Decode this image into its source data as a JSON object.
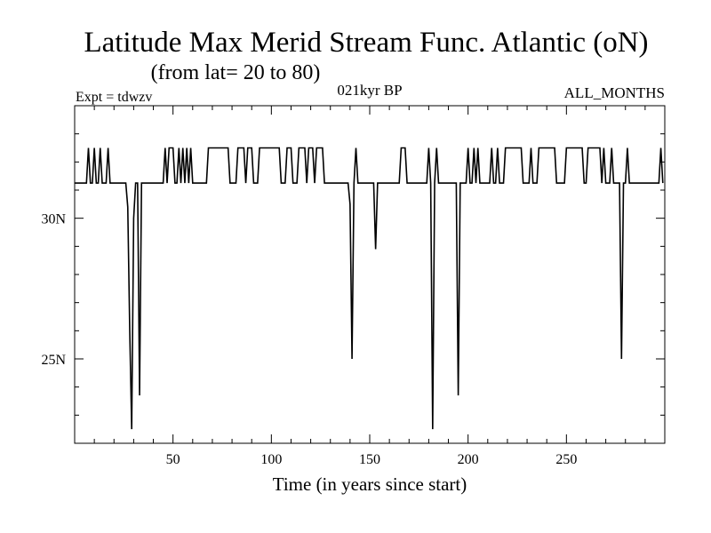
{
  "chart_data": {
    "type": "line",
    "title": "Latitude Max Merid Stream Func. Atlantic (oN)",
    "subtitle": "(from lat= 20 to 80)",
    "annotations": {
      "left": "Expt = tdwzv",
      "center": "021kyr BP",
      "right": "ALL_MONTHS"
    },
    "xlabel": "Time (in years since start)",
    "ylabel": "",
    "xlim": [
      0,
      300
    ],
    "ylim": [
      22,
      34
    ],
    "x_ticks": [
      {
        "value": 50,
        "label": "50"
      },
      {
        "value": 100,
        "label": "100"
      },
      {
        "value": 150,
        "label": "150"
      },
      {
        "value": 200,
        "label": "200"
      },
      {
        "value": 250,
        "label": "250"
      }
    ],
    "y_ticks": [
      {
        "value": 25,
        "label": "25N"
      },
      {
        "value": 30,
        "label": "30N"
      }
    ],
    "baseline": 31.25,
    "high": 32.5,
    "grid": false,
    "line_color": "#000000",
    "series": [
      {
        "points": [
          [
            0,
            31.25
          ],
          [
            6,
            31.25
          ],
          [
            7,
            32.5
          ],
          [
            8,
            31.25
          ],
          [
            9,
            31.25
          ],
          [
            10,
            32.5
          ],
          [
            11,
            31.25
          ],
          [
            12,
            31.25
          ],
          [
            13,
            32.5
          ],
          [
            14,
            31.25
          ],
          [
            16,
            31.25
          ],
          [
            17,
            32.5
          ],
          [
            18,
            31.25
          ],
          [
            26,
            31.25
          ],
          [
            27,
            30.4
          ],
          [
            28,
            26
          ],
          [
            29,
            22.5
          ],
          [
            30,
            30
          ],
          [
            31,
            31.25
          ],
          [
            32,
            31.25
          ],
          [
            33,
            23.7
          ],
          [
            34,
            31.25
          ],
          [
            45,
            31.25
          ],
          [
            46,
            32.5
          ],
          [
            47,
            31.25
          ],
          [
            48,
            32.5
          ],
          [
            50,
            32.5
          ],
          [
            51,
            31.25
          ],
          [
            52,
            31.25
          ],
          [
            53,
            32.5
          ],
          [
            54,
            31.25
          ],
          [
            55,
            32.5
          ],
          [
            56,
            31.25
          ],
          [
            57,
            32.5
          ],
          [
            58,
            31.25
          ],
          [
            59,
            32.5
          ],
          [
            60,
            31.25
          ],
          [
            67,
            31.25
          ],
          [
            68,
            32.5
          ],
          [
            78,
            32.5
          ],
          [
            79,
            31.25
          ],
          [
            82,
            31.25
          ],
          [
            83,
            32.5
          ],
          [
            86,
            32.5
          ],
          [
            87,
            31.25
          ],
          [
            88,
            32.5
          ],
          [
            90,
            32.5
          ],
          [
            91,
            31.25
          ],
          [
            93,
            31.25
          ],
          [
            94,
            32.5
          ],
          [
            104,
            32.5
          ],
          [
            105,
            31.25
          ],
          [
            107,
            31.25
          ],
          [
            108,
            32.5
          ],
          [
            110,
            32.5
          ],
          [
            111,
            31.25
          ],
          [
            113,
            31.25
          ],
          [
            114,
            32.5
          ],
          [
            117,
            32.5
          ],
          [
            118,
            31.25
          ],
          [
            119,
            32.5
          ],
          [
            121,
            32.5
          ],
          [
            122,
            31.25
          ],
          [
            123,
            32.5
          ],
          [
            126,
            32.5
          ],
          [
            127,
            31.25
          ],
          [
            139,
            31.25
          ],
          [
            140,
            30.5
          ],
          [
            141,
            25
          ],
          [
            142,
            31.25
          ],
          [
            143,
            32.5
          ],
          [
            144,
            31.25
          ],
          [
            152,
            31.25
          ],
          [
            153,
            28.9
          ],
          [
            154,
            31.25
          ],
          [
            165,
            31.25
          ],
          [
            166,
            32.5
          ],
          [
            168,
            32.5
          ],
          [
            169,
            31.25
          ],
          [
            179,
            31.25
          ],
          [
            180,
            32.5
          ],
          [
            181,
            31.25
          ],
          [
            182,
            22.5
          ],
          [
            183,
            31.25
          ],
          [
            184,
            32.5
          ],
          [
            185,
            31.25
          ],
          [
            194,
            31.25
          ],
          [
            195,
            23.7
          ],
          [
            196,
            31.25
          ],
          [
            199,
            31.25
          ],
          [
            200,
            32.5
          ],
          [
            201,
            31.25
          ],
          [
            202,
            31.25
          ],
          [
            203,
            32.5
          ],
          [
            204,
            31.25
          ],
          [
            205,
            32.5
          ],
          [
            206,
            31.25
          ],
          [
            211,
            31.25
          ],
          [
            212,
            32.5
          ],
          [
            213,
            31.25
          ],
          [
            214,
            31.25
          ],
          [
            215,
            32.5
          ],
          [
            216,
            31.25
          ],
          [
            218,
            31.25
          ],
          [
            219,
            32.5
          ],
          [
            227,
            32.5
          ],
          [
            228,
            31.25
          ],
          [
            231,
            31.25
          ],
          [
            232,
            32.5
          ],
          [
            233,
            31.25
          ],
          [
            235,
            31.25
          ],
          [
            236,
            32.5
          ],
          [
            244,
            32.5
          ],
          [
            245,
            31.25
          ],
          [
            249,
            31.25
          ],
          [
            250,
            32.5
          ],
          [
            258,
            32.5
          ],
          [
            259,
            31.25
          ],
          [
            260,
            31.25
          ],
          [
            261,
            32.5
          ],
          [
            267,
            32.5
          ],
          [
            268,
            31.25
          ],
          [
            269,
            32.5
          ],
          [
            270,
            31.25
          ],
          [
            272,
            31.25
          ],
          [
            273,
            32.5
          ],
          [
            274,
            31.25
          ],
          [
            277,
            31.25
          ],
          [
            278,
            25
          ],
          [
            279,
            31.25
          ],
          [
            280,
            31.25
          ],
          [
            281,
            32.5
          ],
          [
            282,
            31.25
          ],
          [
            297,
            31.25
          ],
          [
            298,
            32.5
          ],
          [
            299,
            31.25
          ]
        ]
      }
    ]
  }
}
